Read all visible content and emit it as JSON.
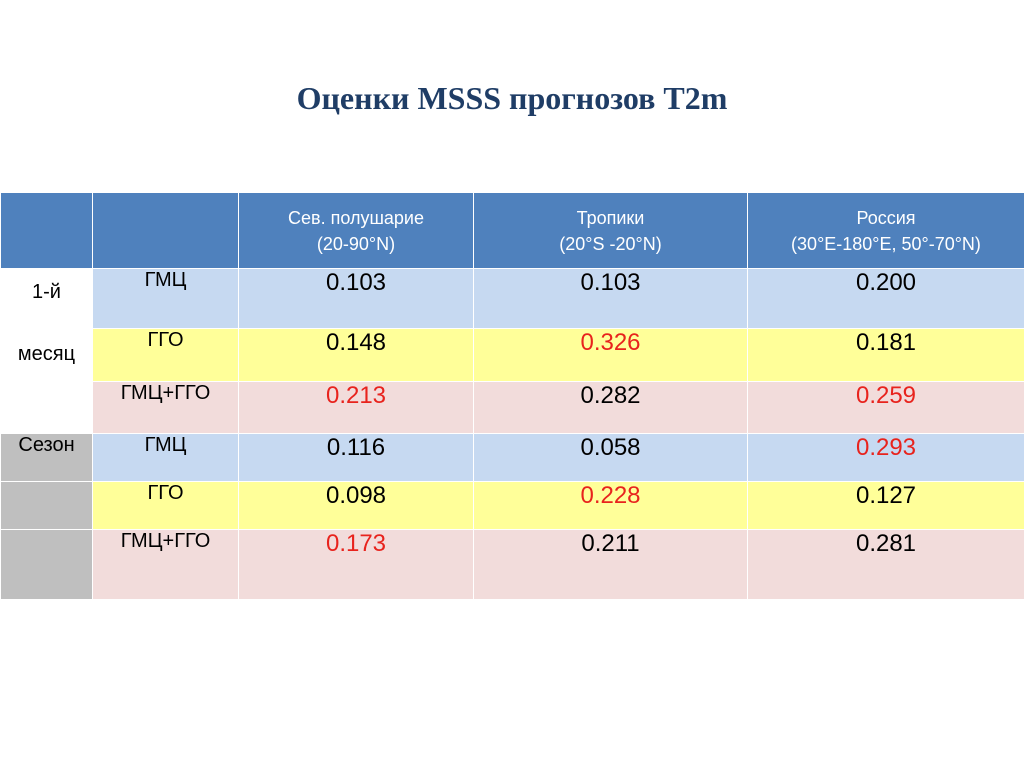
{
  "title": "Оценки MSSS прогнозов T2m",
  "table": {
    "headers": [
      {
        "line1": "",
        "line2": ""
      },
      {
        "line1": "",
        "line2": ""
      },
      {
        "line1": "Сев. полушарие",
        "line2": "(20-90°N)"
      },
      {
        "line1": "Тропики",
        "line2": "(20°S -20°N)"
      },
      {
        "line1": "Россия",
        "line2": "(30°E-180°E, 50°-70°N)"
      }
    ],
    "groups": [
      {
        "label_parts": [
          "1-й",
          "месяц"
        ],
        "rows": [
          {
            "source": "ГМЦ",
            "values": [
              "0.103",
              "0.103",
              "0.200"
            ],
            "highlight": [
              false,
              false,
              false
            ]
          },
          {
            "source": "ГГО",
            "values": [
              "0.148",
              "0.326",
              "0.181"
            ],
            "highlight": [
              false,
              true,
              false
            ]
          },
          {
            "source": "ГМЦ+ГГО",
            "values": [
              "0.213",
              "0.282",
              "0.259"
            ],
            "highlight": [
              true,
              false,
              true
            ]
          }
        ]
      },
      {
        "label_parts": [
          "Сезон"
        ],
        "rows": [
          {
            "source": "ГМЦ",
            "values": [
              "0.116",
              "0.058",
              "0.293"
            ],
            "highlight": [
              false,
              false,
              true
            ]
          },
          {
            "source": "ГГО",
            "values": [
              "0.098",
              "0.228",
              "0.127"
            ],
            "highlight": [
              false,
              true,
              false
            ]
          },
          {
            "source": "ГМЦ+ГГО",
            "values": [
              "0.173",
              "0.211",
              "0.281"
            ],
            "highlight": [
              true,
              false,
              false
            ]
          }
        ]
      }
    ]
  },
  "colors": {
    "title": "#1f3d66",
    "header_bg": "#4f81bd",
    "gmc_row": "#c6d9f1",
    "ggo_row": "#ffff99",
    "mix_row": "#f2dcdb",
    "season_label_bg": "#bfbfbf",
    "highlight_text": "#e8231d"
  }
}
